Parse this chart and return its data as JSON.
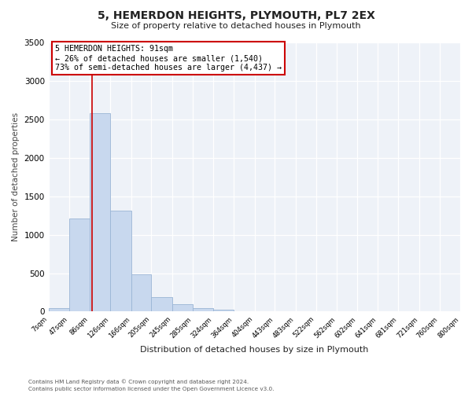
{
  "title": "5, HEMERDON HEIGHTS, PLYMOUTH, PL7 2EX",
  "subtitle": "Size of property relative to detached houses in Plymouth",
  "xlabel": "Distribution of detached houses by size in Plymouth",
  "ylabel": "Number of detached properties",
  "bar_color": "#c8d8ee",
  "bar_edge_color": "#9ab5d5",
  "background_color": "#eef2f8",
  "grid_color": "#ffffff",
  "annotation_line_color": "#cc0000",
  "annotation_text_line1": "5 HEMERDON HEIGHTS: 91sqm",
  "annotation_text_line2": "← 26% of detached houses are smaller (1,540)",
  "annotation_text_line3": "73% of semi-detached houses are larger (4,437) →",
  "property_line_x": 91,
  "footnote1": "Contains HM Land Registry data © Crown copyright and database right 2024.",
  "footnote2": "Contains public sector information licensed under the Open Government Licence v3.0.",
  "bins": [
    7,
    47,
    86,
    126,
    166,
    205,
    245,
    285,
    324,
    364,
    404,
    443,
    483,
    522,
    562,
    602,
    641,
    681,
    721,
    760,
    800
  ],
  "counts": [
    50,
    1210,
    2580,
    1310,
    490,
    190,
    100,
    50,
    30,
    10,
    5,
    3,
    0,
    0,
    0,
    0,
    0,
    0,
    0,
    0
  ],
  "ylim": [
    0,
    3500
  ],
  "yticks": [
    0,
    500,
    1000,
    1500,
    2000,
    2500,
    3000,
    3500
  ]
}
